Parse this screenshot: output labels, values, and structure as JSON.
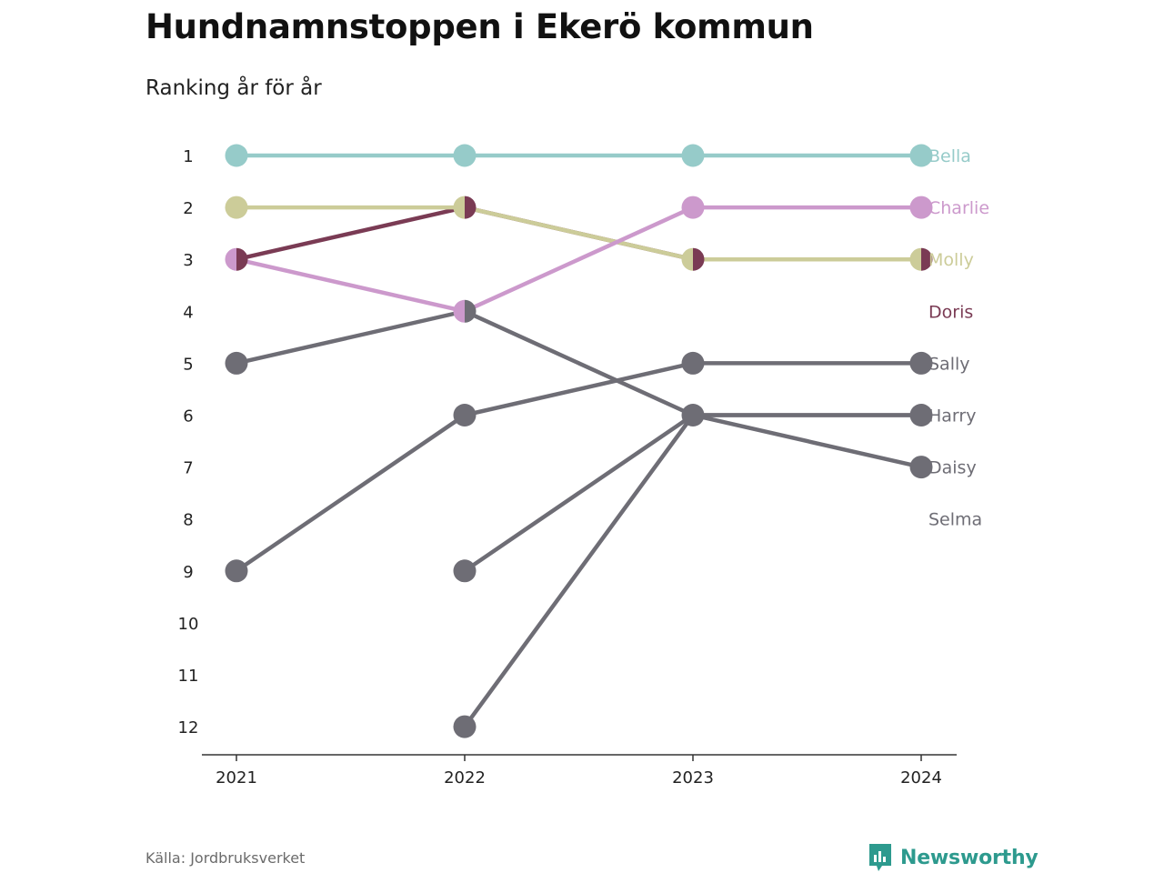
{
  "chart_data": {
    "type": "line",
    "title": "Hundnamnstoppen i Ekerö kommun",
    "subtitle": "Ranking år för år",
    "source": "Källa: Jordbruksverket",
    "brand": "Newsworthy",
    "x": [
      "2021",
      "2022",
      "2023",
      "2024"
    ],
    "y_ticks": [
      "1",
      "2",
      "3",
      "4",
      "5",
      "6",
      "7",
      "8",
      "9",
      "10",
      "11",
      "12"
    ],
    "ylim": [
      1,
      12
    ],
    "y_reversed": true,
    "series": [
      {
        "name": "Bella",
        "color": "#96cbc9",
        "ranks": [
          1,
          1,
          1,
          1
        ]
      },
      {
        "name": "Charlie",
        "color": "#cc99cc",
        "ranks": [
          3,
          4,
          2,
          2
        ]
      },
      {
        "name": "Molly",
        "color": "#cccc99",
        "ranks": [
          2,
          2,
          3,
          3
        ]
      },
      {
        "name": "Doris",
        "color": "#7a3b54",
        "ranks": [
          3,
          2,
          3,
          3
        ],
        "label_rank": 4
      },
      {
        "name": "Harry",
        "color": "#6e6d75",
        "ranks": [
          5,
          4,
          6,
          6
        ]
      },
      {
        "name": "Sally",
        "color": "#6e6d75",
        "ranks": [
          9,
          6,
          5,
          5
        ]
      },
      {
        "name": "Daisy",
        "color": "#6e6d75",
        "ranks": [
          null,
          9,
          6,
          7
        ]
      },
      {
        "name": "Selma",
        "color": "#6e6d75",
        "ranks": [
          null,
          12,
          6,
          6
        ],
        "label_rank": 8
      }
    ]
  }
}
